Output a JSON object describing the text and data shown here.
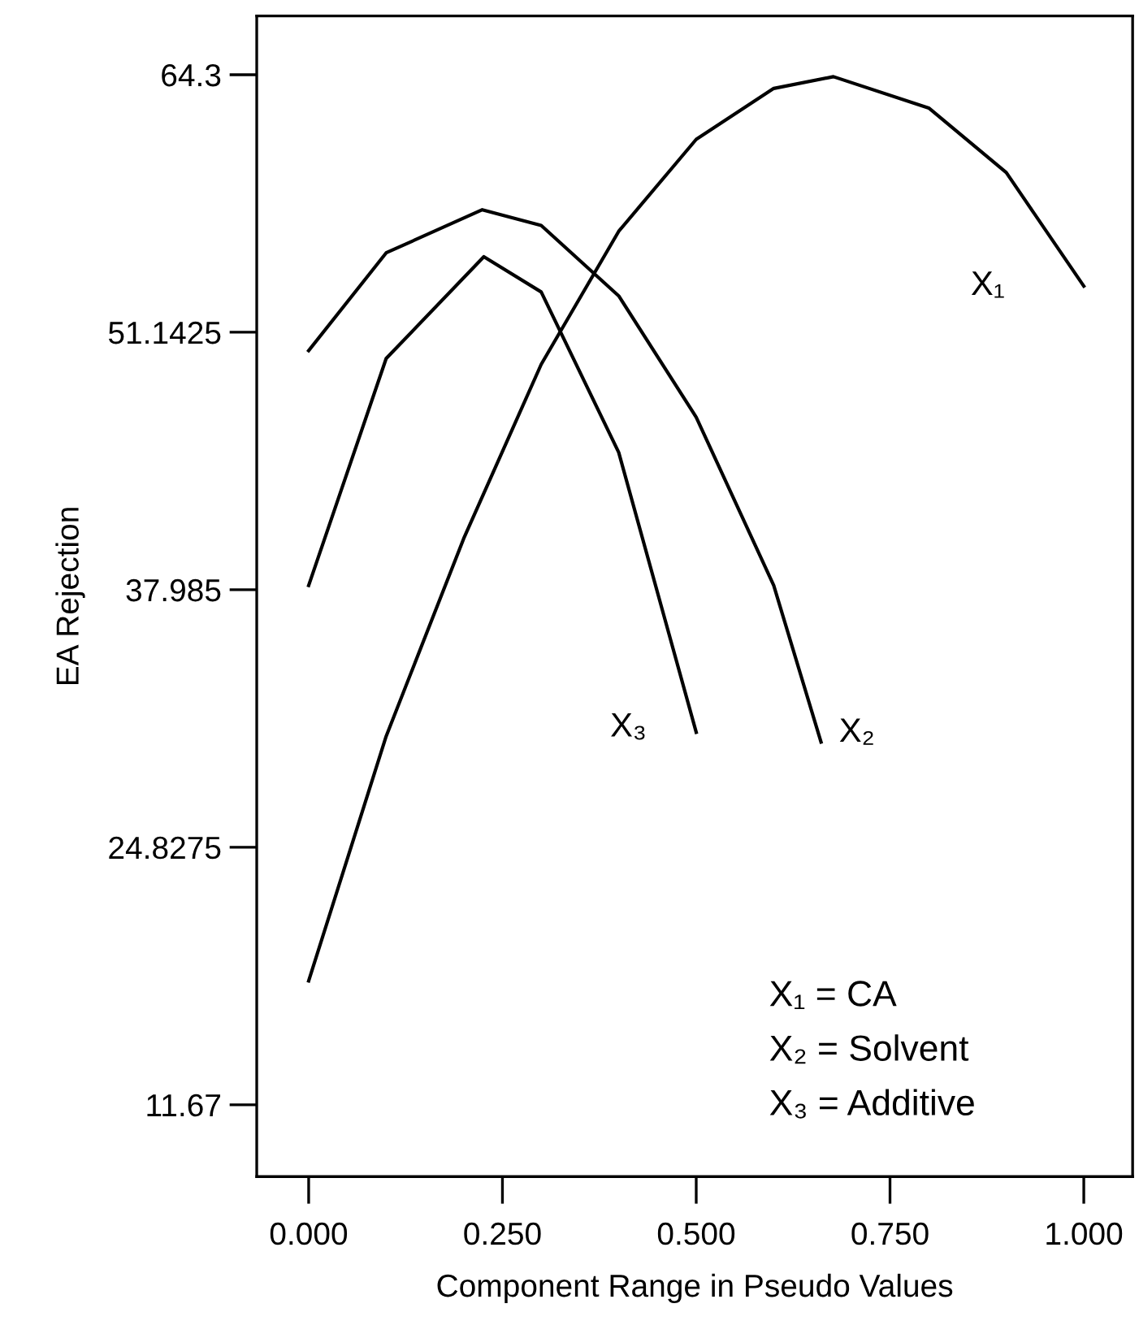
{
  "chart_data": {
    "type": "line",
    "xlabel": "Component Range in Pseudo Values",
    "ylabel": "EA Rejection",
    "series": [
      {
        "name": "X₁",
        "color": "#000000",
        "x": [
          0,
          0.1,
          0.2,
          0.3,
          0.4,
          0.5,
          0.6,
          0.677,
          0.8,
          0.9,
          1.0
        ],
        "values": [
          18.0,
          30.5,
          40.6,
          49.5,
          56.3,
          61.0,
          63.6,
          64.2,
          62.6,
          59.3,
          53.5
        ]
      },
      {
        "name": "X₂",
        "color": "#000000",
        "x": [
          0,
          0.1,
          0.224,
          0.3,
          0.4,
          0.5,
          0.6,
          0.661
        ],
        "values": [
          50.2,
          55.2,
          57.4,
          56.6,
          53.0,
          46.8,
          38.2,
          30.2
        ]
      },
      {
        "name": "X₃",
        "color": "#000000",
        "x": [
          0,
          0.1,
          0.226,
          0.3,
          0.4,
          0.5
        ],
        "values": [
          38.2,
          49.8,
          55.0,
          53.2,
          45.0,
          30.7
        ]
      }
    ],
    "annotations": [
      "X₁ = CA",
      "X₂ = Solvent",
      "X₃ = Additive"
    ],
    "xlim": [
      -0.067,
      1.063
    ],
    "ylim": [
      8.0,
      67.3
    ],
    "xticks": [
      {
        "value": 0,
        "label": "0.000"
      },
      {
        "value": 0.25,
        "label": "0.250"
      },
      {
        "value": 0.5,
        "label": "0.500"
      },
      {
        "value": 0.75,
        "label": "0.750"
      },
      {
        "value": 1.0,
        "label": "1.000"
      }
    ],
    "yticks": [
      11.67,
      24.8275,
      37.985,
      51.1425,
      64.3
    ],
    "grid": false,
    "legend": false,
    "marker": "none",
    "line_style": "solid"
  }
}
